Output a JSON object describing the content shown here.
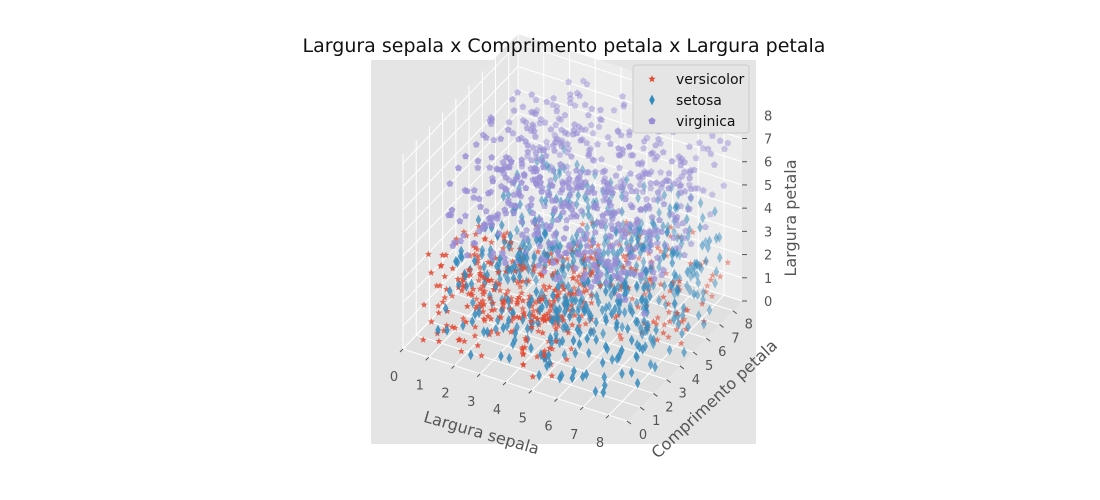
{
  "chart_data": {
    "type": "scatter",
    "projection": "3d",
    "title": "Largura sepala x Comprimento petala x Largura petala",
    "xlabel": "Largura sepala",
    "ylabel": "Comprimento petala",
    "zlabel": "Largura petala",
    "xlim": [
      0,
      8.7
    ],
    "ylim": [
      0,
      8.7
    ],
    "zlim": [
      0,
      8.4
    ],
    "xticks": [
      "0",
      "1",
      "2",
      "3",
      "4",
      "5",
      "6",
      "7",
      "8"
    ],
    "yticks": [
      "0",
      "1",
      "2",
      "3",
      "4",
      "5",
      "6",
      "7",
      "8"
    ],
    "zticks": [
      "0",
      "1",
      "2",
      "3",
      "4",
      "5",
      "6",
      "7",
      "8"
    ],
    "grid": true,
    "legend": "top-right",
    "series": [
      {
        "name": "versicolor",
        "marker": "star",
        "color": "#e24a33",
        "clusters": [
          {
            "count": 300,
            "x": [
              0.5,
              5.5
            ],
            "y": [
              0.5,
              4.5
            ],
            "z": [
              0,
              3.8
            ]
          },
          {
            "count": 120,
            "x": [
              3.5,
              8.5
            ],
            "y": [
              3.5,
              8.5
            ],
            "z": [
              0,
              3
            ]
          }
        ]
      },
      {
        "name": "setosa",
        "marker": "diamond",
        "color": "#348abd",
        "clusters": [
          {
            "count": 600,
            "x": [
              1,
              8.5
            ],
            "y": [
              0.5,
              8.5
            ],
            "z": [
              0,
              4.5
            ]
          }
        ]
      },
      {
        "name": "virginica",
        "marker": "pentagon",
        "color": "#988ed5",
        "clusters": [
          {
            "count": 600,
            "x": [
              1,
              8.5
            ],
            "y": [
              1,
              8.5
            ],
            "z": [
              3.5,
              8
            ]
          }
        ]
      }
    ]
  }
}
